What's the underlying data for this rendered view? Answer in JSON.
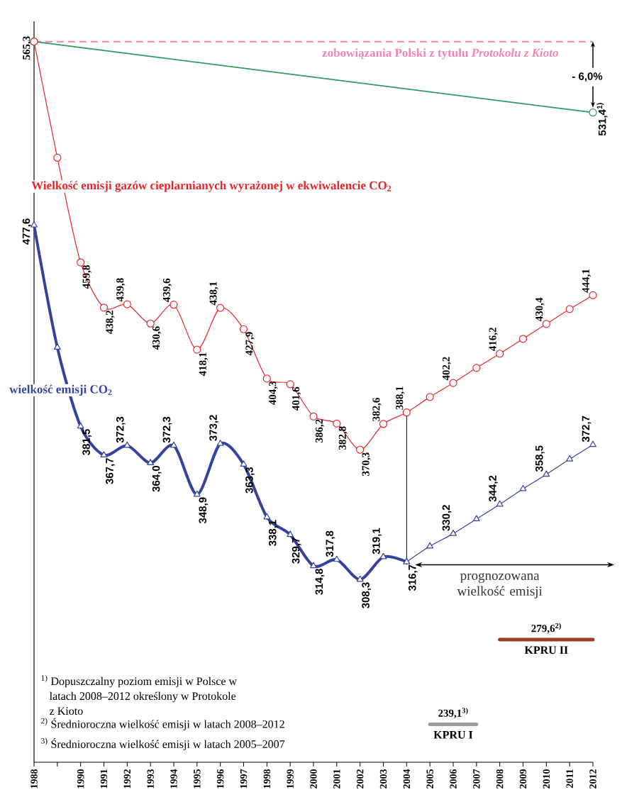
{
  "chart_data": {
    "type": "line",
    "x": [
      1988,
      1989,
      1990,
      1991,
      1992,
      1993,
      1994,
      1995,
      1996,
      1997,
      1998,
      1999,
      2000,
      2001,
      2002,
      2003,
      2004,
      2005,
      2006,
      2007,
      2008,
      2009,
      2010,
      2011,
      2012
    ],
    "series": [
      {
        "color": "#2a9a67",
        "x": [
          1988,
          2012
        ],
        "values": [
          565.3,
          531.4
        ],
        "marker": "circle",
        "value_labels": [
          null,
          "531,4$^{1)}$"
        ]
      },
      {
        "name": "Wielkość emisji gazów cieplarnianych wyrażonej w ekwiwalencie CO$_{2}$",
        "color": "#e8262a",
        "marker": "circle",
        "values": [
          565.3,
          509.8,
          459.8,
          438.2,
          439.8,
          430.6,
          439.6,
          418.1,
          438.1,
          427.9,
          404.3,
          401.6,
          386.2,
          382.8,
          370.3,
          382.6,
          388.1,
          395.5,
          402.2,
          409.4,
          416.2,
          423.3,
          430.4,
          437.5,
          444.1
        ],
        "value_labels": [
          "565,3",
          null,
          "459,8",
          "438,2",
          "439,8",
          "430,6",
          "439,6",
          "418,1",
          "438,1",
          "427,9",
          "404,3",
          "401,6",
          "386,2",
          "382,8",
          "370,3",
          "382,6",
          "388,1",
          null,
          "402,2",
          null,
          "416,2",
          null,
          "430,4",
          null,
          "444,1"
        ]
      },
      {
        "name": "wielkość emisji CO$_{2}$",
        "color": "#34449c",
        "marker": "triangle",
        "x": [
          1988,
          1989,
          1990,
          1991,
          1992,
          1993,
          1994,
          1995,
          1996,
          1997,
          1998,
          1999,
          2000,
          2001,
          2002,
          2003,
          2004
        ],
        "values": [
          477.6,
          419.2,
          381.5,
          367.7,
          372.3,
          364.0,
          372.3,
          348.9,
          373.2,
          363.3,
          338.1,
          329.7,
          314.8,
          317.8,
          308.3,
          319.1,
          316.7
        ],
        "value_labels": [
          "477,6",
          null,
          "381,5",
          "367,7",
          "372,3",
          "364,0",
          "372,3",
          "348,9",
          "373,2",
          "363,3",
          "338,1",
          "329,7",
          "314,8",
          "317,8",
          "308,3",
          "319,1",
          "316,7"
        ]
      },
      {
        "color": "#34449c",
        "marker": "triangle",
        "x": [
          2004,
          2005,
          2006,
          2007,
          2008,
          2009,
          2010,
          2011,
          2012
        ],
        "values": [
          316.7,
          324.2,
          330.2,
          337.2,
          344.2,
          351.6,
          358.5,
          365.8,
          372.7
        ],
        "value_labels": [
          null,
          null,
          "330,2",
          null,
          "344,2",
          null,
          "358,5",
          null,
          "372,7"
        ]
      },
      {
        "name": "KPRU I",
        "color": "#9d9d9c",
        "marker": "none",
        "x": [
          2005,
          2006,
          2007
        ],
        "values": [
          239.1,
          239.1,
          239.1
        ],
        "value_labels": [
          null,
          "239,1$^{3)}$",
          null
        ]
      },
      {
        "name": "KPRU II",
        "color": "#9c3a22",
        "marker": "none",
        "x": [
          2008,
          2009,
          2010,
          2011,
          2012
        ],
        "values": [
          279.6,
          279.6,
          279.6,
          279.6,
          279.6
        ],
        "value_labels": [
          null,
          null,
          "279,6$^{2)}$",
          null,
          null
        ]
      }
    ],
    "ref_lines": [
      {
        "axis": "y",
        "value": 565.3,
        "label": "zobowiązania Polski z tytułu *Protokołu z Kioto*",
        "color": "#ef84b4",
        "line_style": "dashed"
      }
    ],
    "annotations": [
      "- 6,0%",
      "prognozowana wielkość emisji",
      "$^{1)}$ Dopuszczalny poziom emisji w Polsce w latach 2008–2012 określony w Protokole z Kioto",
      "$^{2)}$ Średnioroczna wielkość emisji w latach 2008–2012",
      "$^{3)}$ Średnioroczna wielkość emisji w latach 2005–2007"
    ],
    "xlim": [
      1988,
      2012
    ],
    "ylim": [
      221,
      575
    ],
    "xticks": [
      1988,
      {
        "value": 1989,
        "label": null
      },
      1990,
      1991,
      1992,
      1993,
      1994,
      1995,
      1996,
      1997,
      1998,
      1999,
      2000,
      2001,
      2002,
      2003,
      2004,
      2005,
      2006,
      2007,
      2008,
      2009,
      2010,
      2011,
      2012
    ],
    "tick_labels": "x"
  }
}
